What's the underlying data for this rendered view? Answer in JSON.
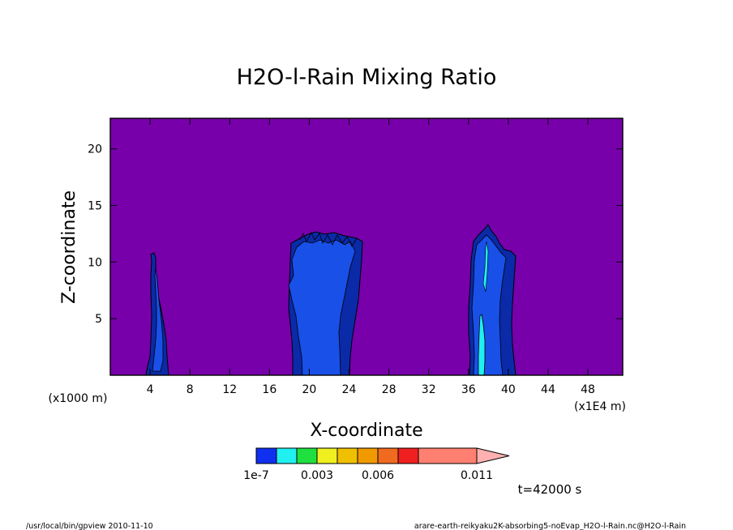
{
  "chart_data": {
    "type": "heatmap",
    "title": "H2O-l-Rain Mixing Ratio",
    "xlabel": "X-coordinate",
    "ylabel": "Z-coordinate",
    "x_unit_left": "(x1000 m)",
    "x_unit_right": "(x1E4 m)",
    "xlim": [
      0,
      51.5
    ],
    "ylim": [
      0,
      22.7
    ],
    "xticks": [
      4,
      8,
      12,
      16,
      20,
      24,
      28,
      32,
      36,
      40,
      44,
      48
    ],
    "yticks": [
      5,
      10,
      15,
      20
    ],
    "background_level_color": "#7700aa",
    "colorbar": {
      "colors": [
        "#1030f0",
        "#20f0f0",
        "#20e040",
        "#f0f020",
        "#f0c000",
        "#f09a00",
        "#f06a20",
        "#f02020",
        "#ff8070",
        "#ffb0b0"
      ],
      "labels": [
        "1e-7",
        "0.003",
        "0.006",
        "0.011"
      ]
    },
    "time_label": "t=42000 s",
    "features": [
      {
        "name": "cloud-left",
        "x_center": 4.6,
        "top": 11.0
      },
      {
        "name": "cloud-middle",
        "x_center": 21.0,
        "top": 12.8
      },
      {
        "name": "cloud-right",
        "x_center": 38.0,
        "top": 13.4
      }
    ]
  },
  "footer": {
    "left": "/usr/local/bin/gpview   2010-11-10",
    "right": "arare-earth-reikyaku2K-absorbing5-noEvap_H2O-l-Rain.nc@H2O-l-Rain"
  }
}
